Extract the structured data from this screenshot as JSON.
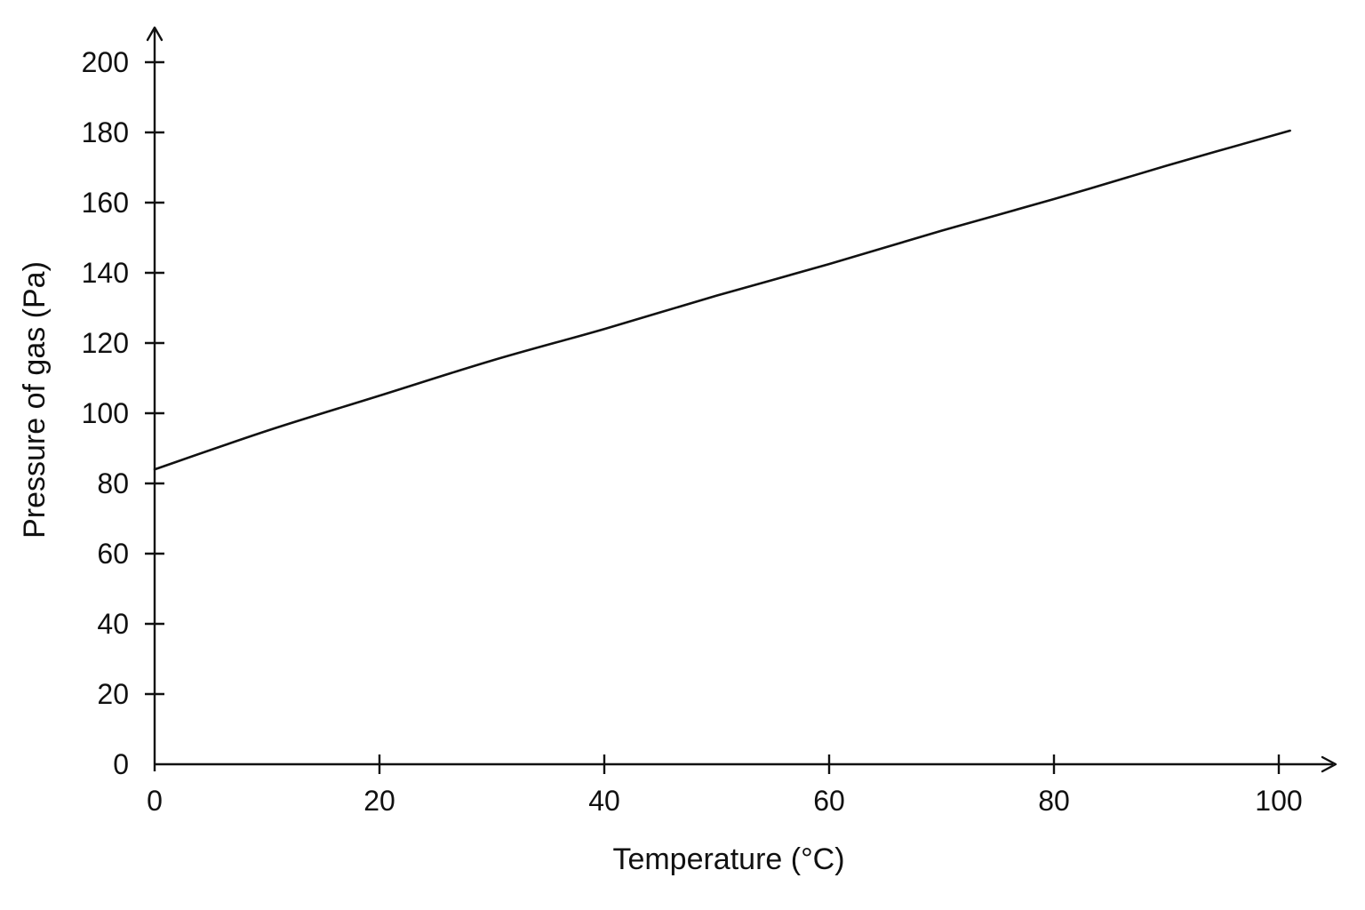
{
  "chart_data": {
    "type": "line",
    "title": "",
    "xlabel": "Temperature (°C)",
    "ylabel": "Pressure of gas (Pa)",
    "xlim": [
      0,
      100
    ],
    "ylim": [
      0,
      200
    ],
    "x_ticks": [
      0,
      20,
      40,
      60,
      80,
      100
    ],
    "y_ticks": [
      0,
      20,
      40,
      60,
      80,
      100,
      120,
      140,
      160,
      180,
      200
    ],
    "grid": false,
    "legend": "none",
    "series": [
      {
        "x": [
          0,
          10,
          20,
          30,
          40,
          50,
          60,
          70,
          80,
          90,
          101
        ],
        "y": [
          84,
          95,
          105,
          115,
          124,
          133.5,
          142.5,
          152,
          161,
          170.5,
          180.5
        ]
      }
    ],
    "colors": {
      "axis": "#111111",
      "line": "#111111"
    }
  }
}
